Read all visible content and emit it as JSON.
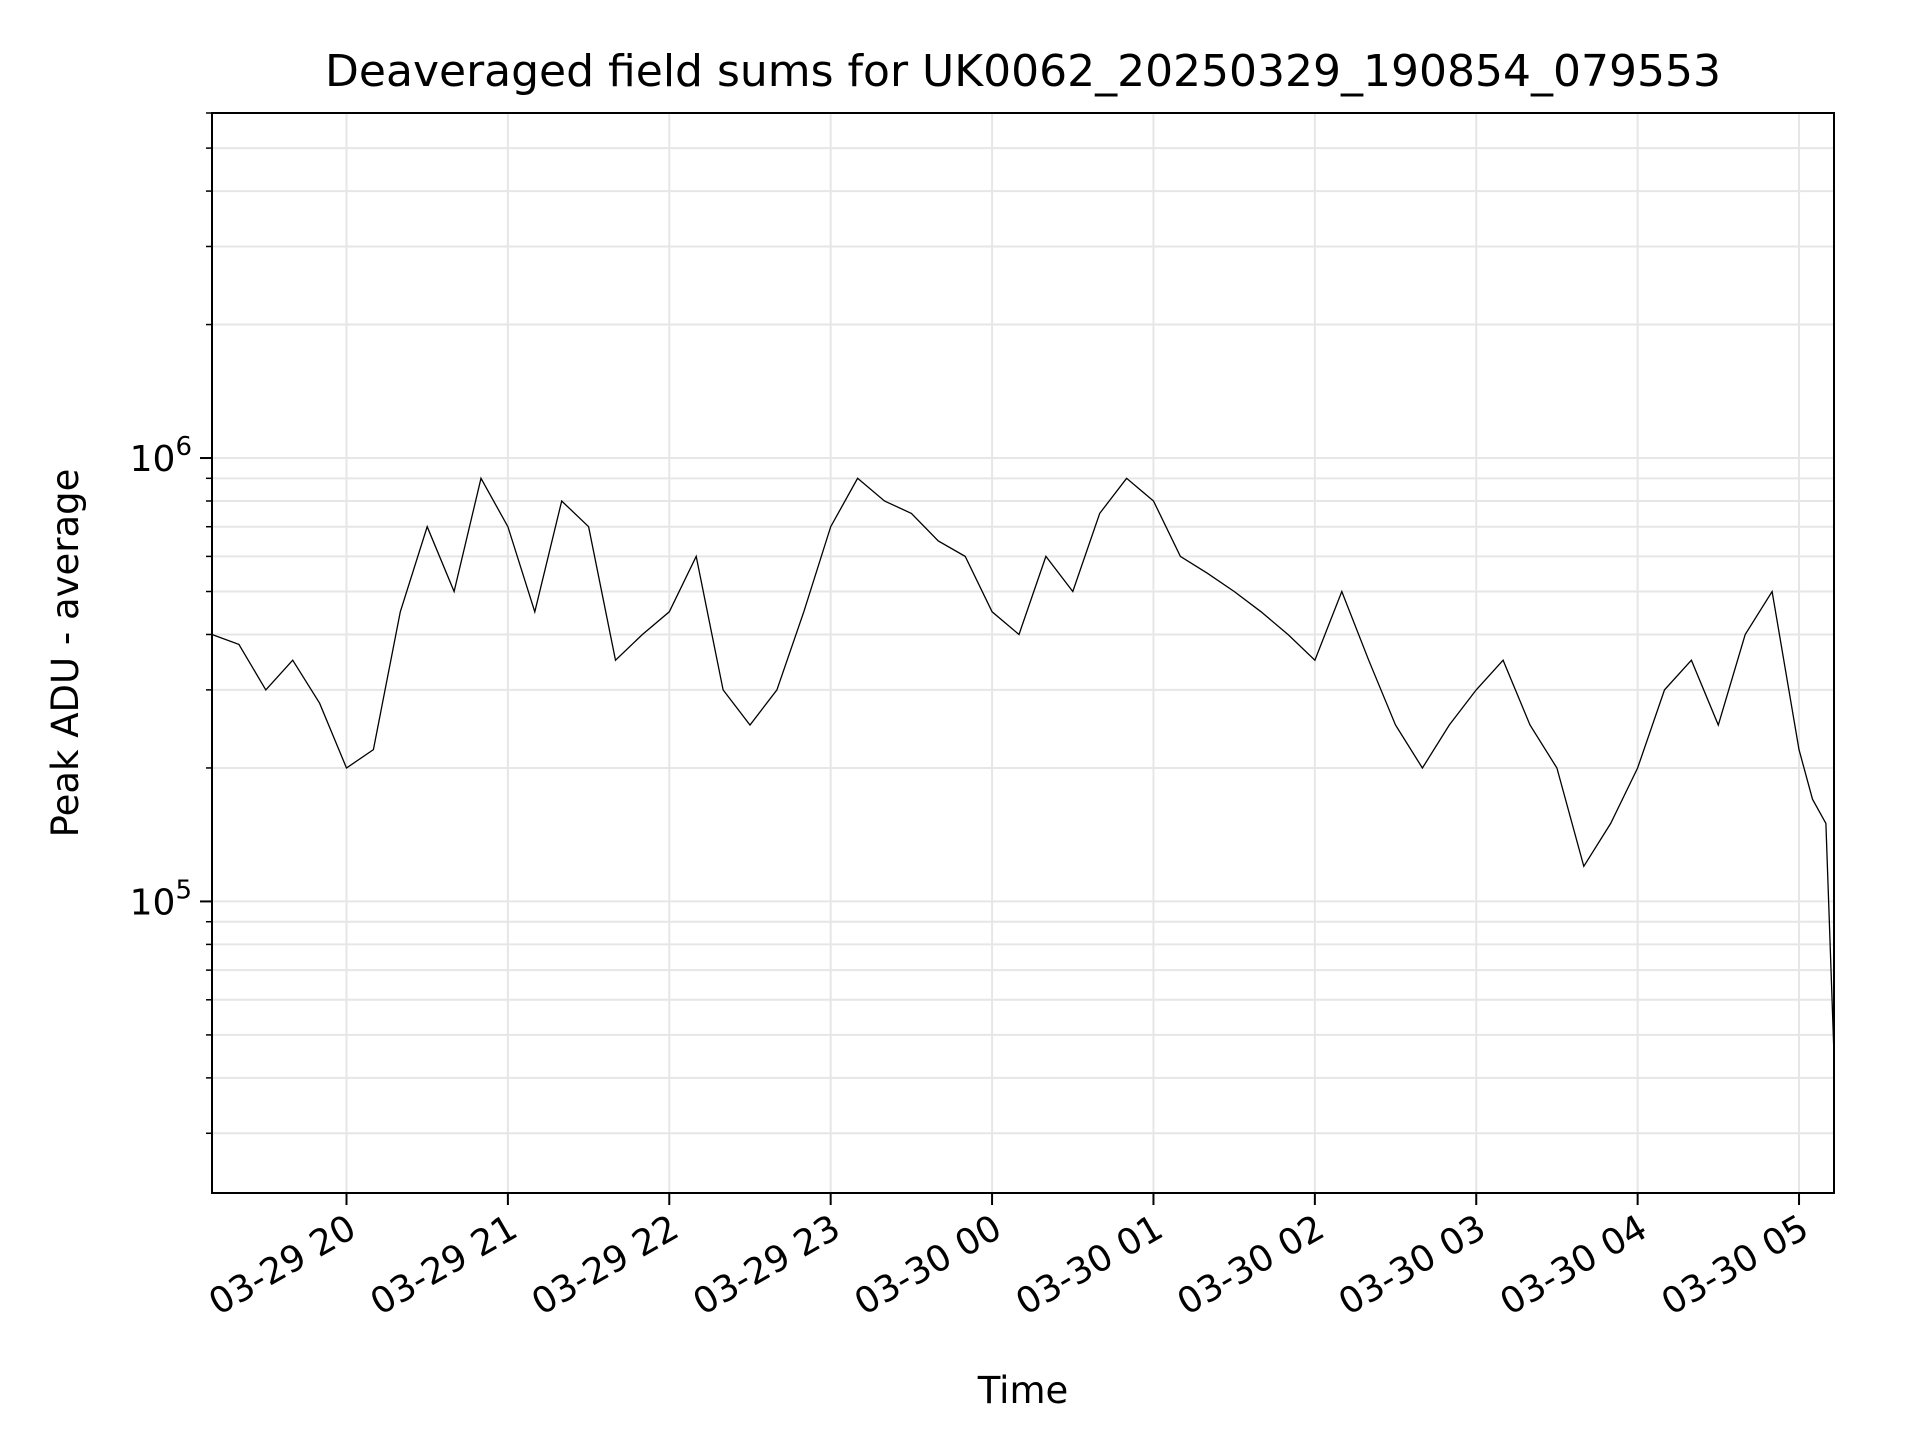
{
  "chart_data": {
    "type": "line",
    "title": "Deaveraged field sums for UK0062_20250329_190854_079553",
    "xlabel": "Time",
    "ylabel": "Peak ADU - average",
    "y_scale": "log",
    "ylim": [
      22000,
      6000000
    ],
    "xlim": [
      "2025-03-29 19:10",
      "2025-03-30 05:13"
    ],
    "grid": true,
    "line_color": "#000000",
    "grid_color": "#e6e6e6",
    "x_ticks": [
      {
        "value": "2025-03-29 20:00",
        "label": "03-29 20"
      },
      {
        "value": "2025-03-29 21:00",
        "label": "03-29 21"
      },
      {
        "value": "2025-03-29 22:00",
        "label": "03-29 22"
      },
      {
        "value": "2025-03-29 23:00",
        "label": "03-29 23"
      },
      {
        "value": "2025-03-30 00:00",
        "label": "03-30 00"
      },
      {
        "value": "2025-03-30 01:00",
        "label": "03-30 01"
      },
      {
        "value": "2025-03-30 02:00",
        "label": "03-30 02"
      },
      {
        "value": "2025-03-30 03:00",
        "label": "03-30 03"
      },
      {
        "value": "2025-03-30 04:00",
        "label": "03-30 04"
      },
      {
        "value": "2025-03-30 05:00",
        "label": "03-30 05"
      }
    ],
    "y_ticks": [
      {
        "value": 100000,
        "base": "10",
        "exp": "5"
      },
      {
        "value": 1000000,
        "base": "10",
        "exp": "6"
      }
    ],
    "series": [
      {
        "x": [
          "2025-03-29 19:10",
          "2025-03-29 19:20",
          "2025-03-29 19:30",
          "2025-03-29 19:40",
          "2025-03-29 19:50",
          "2025-03-29 20:00",
          "2025-03-29 20:10",
          "2025-03-29 20:20",
          "2025-03-29 20:30",
          "2025-03-29 20:40",
          "2025-03-29 20:50",
          "2025-03-29 21:00",
          "2025-03-29 21:10",
          "2025-03-29 21:20",
          "2025-03-29 21:30",
          "2025-03-29 21:40",
          "2025-03-29 21:50",
          "2025-03-29 22:00",
          "2025-03-29 22:10",
          "2025-03-29 22:20",
          "2025-03-29 22:30",
          "2025-03-29 22:40",
          "2025-03-29 22:50",
          "2025-03-29 23:00",
          "2025-03-29 23:10",
          "2025-03-29 23:20",
          "2025-03-29 23:30",
          "2025-03-29 23:40",
          "2025-03-29 23:50",
          "2025-03-30 00:00",
          "2025-03-30 00:10",
          "2025-03-30 00:20",
          "2025-03-30 00:30",
          "2025-03-30 00:40",
          "2025-03-30 00:50",
          "2025-03-30 01:00",
          "2025-03-30 01:10",
          "2025-03-30 01:20",
          "2025-03-30 01:30",
          "2025-03-30 01:40",
          "2025-03-30 01:50",
          "2025-03-30 02:00",
          "2025-03-30 02:10",
          "2025-03-30 02:20",
          "2025-03-30 02:30",
          "2025-03-30 02:40",
          "2025-03-30 02:50",
          "2025-03-30 03:00",
          "2025-03-30 03:10",
          "2025-03-30 03:20",
          "2025-03-30 03:30",
          "2025-03-30 03:40",
          "2025-03-30 03:50",
          "2025-03-30 04:00",
          "2025-03-30 04:10",
          "2025-03-30 04:20",
          "2025-03-30 04:30",
          "2025-03-30 04:40",
          "2025-03-30 04:50",
          "2025-03-30 05:00",
          "2025-03-30 05:05",
          "2025-03-30 05:10",
          "2025-03-30 05:13"
        ],
        "y": [
          400000,
          380000,
          300000,
          350000,
          280000,
          200000,
          220000,
          450000,
          700000,
          500000,
          900000,
          700000,
          450000,
          800000,
          700000,
          350000,
          400000,
          450000,
          600000,
          300000,
          250000,
          300000,
          450000,
          700000,
          900000,
          800000,
          750000,
          650000,
          600000,
          450000,
          400000,
          600000,
          500000,
          750000,
          900000,
          800000,
          600000,
          550000,
          500000,
          450000,
          400000,
          350000,
          500000,
          350000,
          250000,
          200000,
          250000,
          300000,
          350000,
          250000,
          200000,
          120000,
          150000,
          200000,
          300000,
          350000,
          250000,
          400000,
          500000,
          220000,
          170000,
          150000,
          45000
        ]
      }
    ]
  }
}
